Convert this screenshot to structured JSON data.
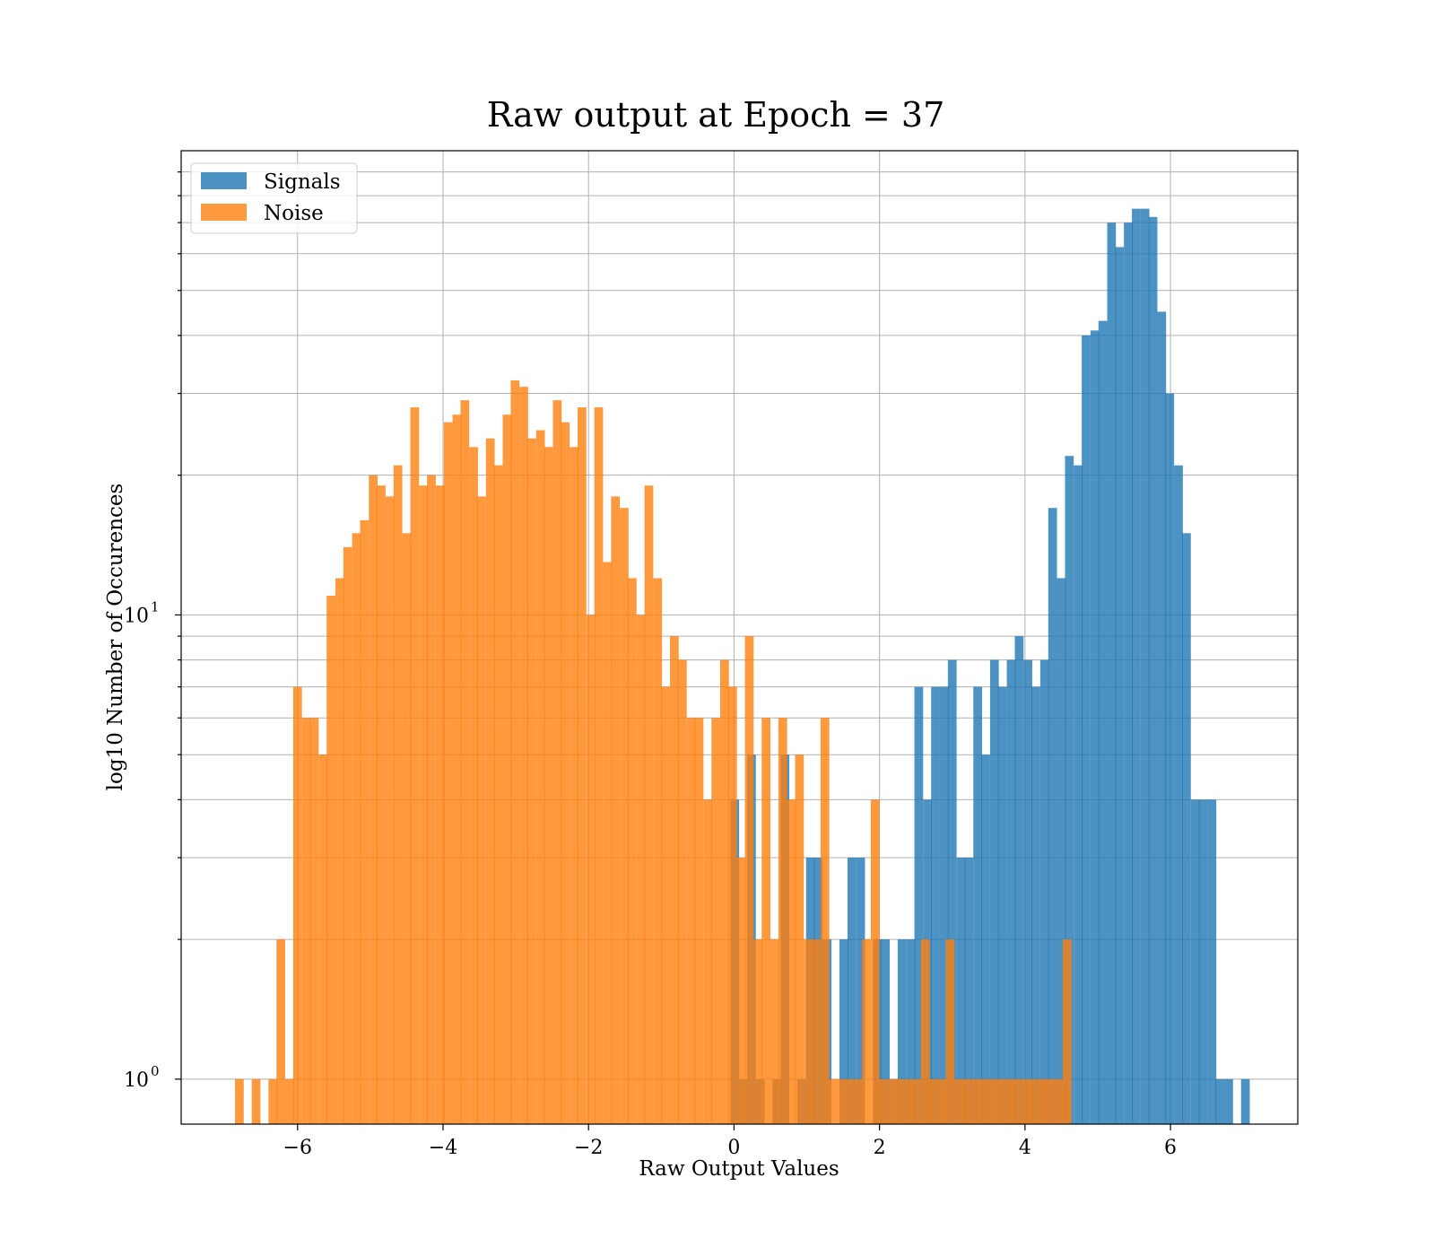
{
  "chart_data": {
    "type": "bar",
    "title": "Raw output at Epoch = 37",
    "xlabel": "Raw Output Values",
    "ylabel": "log10 Number of Occurences",
    "xlim": [
      -7.6,
      7.75
    ],
    "ylim": [
      0.8,
      100
    ],
    "yscale": "log",
    "grid": true,
    "legend_position": "top-left",
    "xticks": [
      -6,
      -4,
      -2,
      0,
      2,
      4,
      6
    ],
    "xtick_labels": [
      "−6",
      "−4",
      "−2",
      "0",
      "2",
      "4",
      "6"
    ],
    "yticks": [
      {
        "value": 1,
        "base": "10",
        "exp": "0"
      },
      {
        "value": 10,
        "base": "10",
        "exp": "1"
      }
    ],
    "series": [
      {
        "name": "Signals",
        "color": "#1f77b4",
        "opacity": 0.8,
        "bin_width": 0.115,
        "bins": [
          [
            -0.05,
            4
          ],
          [
            0.07,
            1
          ],
          [
            0.18,
            5
          ],
          [
            0.3,
            1
          ],
          [
            0.53,
            1
          ],
          [
            0.64,
            5
          ],
          [
            0.87,
            1
          ],
          [
            0.99,
            3
          ],
          [
            1.1,
            3
          ],
          [
            1.22,
            2
          ],
          [
            1.45,
            2
          ],
          [
            1.56,
            3
          ],
          [
            1.68,
            3
          ],
          [
            1.91,
            2
          ],
          [
            2.02,
            2
          ],
          [
            2.14,
            1
          ],
          [
            2.25,
            2
          ],
          [
            2.37,
            2
          ],
          [
            2.48,
            7
          ],
          [
            2.6,
            4
          ],
          [
            2.71,
            7
          ],
          [
            2.83,
            7
          ],
          [
            2.94,
            8
          ],
          [
            3.06,
            3
          ],
          [
            3.17,
            3
          ],
          [
            3.29,
            7
          ],
          [
            3.4,
            5
          ],
          [
            3.52,
            8
          ],
          [
            3.63,
            7
          ],
          [
            3.75,
            8
          ],
          [
            3.86,
            9
          ],
          [
            3.98,
            8
          ],
          [
            4.09,
            7
          ],
          [
            4.21,
            8
          ],
          [
            4.32,
            17
          ],
          [
            4.44,
            12
          ],
          [
            4.55,
            22
          ],
          [
            4.67,
            21
          ],
          [
            4.78,
            40
          ],
          [
            4.9,
            41
          ],
          [
            5.01,
            43
          ],
          [
            5.13,
            70
          ],
          [
            5.24,
            62
          ],
          [
            5.36,
            70
          ],
          [
            5.47,
            75
          ],
          [
            5.59,
            75
          ],
          [
            5.7,
            72
          ],
          [
            5.82,
            45
          ],
          [
            5.93,
            30
          ],
          [
            6.05,
            21
          ],
          [
            6.16,
            15
          ],
          [
            6.28,
            4
          ],
          [
            6.39,
            4
          ],
          [
            6.51,
            4
          ],
          [
            6.62,
            1
          ],
          [
            6.74,
            1
          ],
          [
            6.97,
            1
          ]
        ]
      },
      {
        "name": "Noise",
        "color": "#ff7f0e",
        "opacity": 0.8,
        "bin_width": 0.115,
        "bins": [
          [
            -6.86,
            1
          ],
          [
            -6.63,
            1
          ],
          [
            -6.4,
            1
          ],
          [
            -6.29,
            2
          ],
          [
            -6.17,
            1
          ],
          [
            -6.06,
            7
          ],
          [
            -5.94,
            6
          ],
          [
            -5.83,
            6
          ],
          [
            -5.71,
            5
          ],
          [
            -5.6,
            11
          ],
          [
            -5.48,
            12
          ],
          [
            -5.37,
            14
          ],
          [
            -5.25,
            15
          ],
          [
            -5.14,
            16
          ],
          [
            -5.02,
            20
          ],
          [
            -4.91,
            19
          ],
          [
            -4.79,
            18
          ],
          [
            -4.68,
            21
          ],
          [
            -4.56,
            15
          ],
          [
            -4.45,
            28
          ],
          [
            -4.33,
            19
          ],
          [
            -4.22,
            20
          ],
          [
            -4.1,
            19
          ],
          [
            -3.99,
            26
          ],
          [
            -3.87,
            27
          ],
          [
            -3.76,
            29
          ],
          [
            -3.64,
            23
          ],
          [
            -3.53,
            18
          ],
          [
            -3.41,
            24
          ],
          [
            -3.3,
            21
          ],
          [
            -3.18,
            27
          ],
          [
            -3.07,
            32
          ],
          [
            -2.95,
            31
          ],
          [
            -2.84,
            24
          ],
          [
            -2.72,
            25
          ],
          [
            -2.61,
            23
          ],
          [
            -2.49,
            29
          ],
          [
            -2.38,
            26
          ],
          [
            -2.26,
            23
          ],
          [
            -2.15,
            28
          ],
          [
            -2.03,
            10
          ],
          [
            -1.92,
            28
          ],
          [
            -1.8,
            13
          ],
          [
            -1.69,
            18
          ],
          [
            -1.57,
            17
          ],
          [
            -1.46,
            12
          ],
          [
            -1.34,
            10
          ],
          [
            -1.23,
            19
          ],
          [
            -1.11,
            12
          ],
          [
            -1.0,
            7
          ],
          [
            -0.88,
            9
          ],
          [
            -0.77,
            8
          ],
          [
            -0.65,
            6
          ],
          [
            -0.54,
            6
          ],
          [
            -0.42,
            4
          ],
          [
            -0.31,
            6
          ],
          [
            -0.19,
            8
          ],
          [
            -0.08,
            7
          ],
          [
            0.04,
            3
          ],
          [
            0.15,
            9
          ],
          [
            0.27,
            2
          ],
          [
            0.38,
            6
          ],
          [
            0.5,
            2
          ],
          [
            0.61,
            6
          ],
          [
            0.73,
            4
          ],
          [
            0.84,
            5
          ],
          [
            0.96,
            2
          ],
          [
            1.07,
            2
          ],
          [
            1.19,
            6
          ],
          [
            1.3,
            1
          ],
          [
            1.42,
            1
          ],
          [
            1.53,
            1
          ],
          [
            1.65,
            1
          ],
          [
            1.76,
            2
          ],
          [
            1.88,
            4
          ],
          [
            1.99,
            1
          ],
          [
            2.11,
            1
          ],
          [
            2.22,
            1
          ],
          [
            2.34,
            1
          ],
          [
            2.45,
            1
          ],
          [
            2.57,
            2
          ],
          [
            2.68,
            1
          ],
          [
            2.8,
            1
          ],
          [
            2.91,
            2
          ],
          [
            3.03,
            1
          ],
          [
            3.14,
            1
          ],
          [
            3.26,
            1
          ],
          [
            3.37,
            1
          ],
          [
            3.49,
            1
          ],
          [
            3.6,
            1
          ],
          [
            3.72,
            1
          ],
          [
            3.83,
            1
          ],
          [
            3.95,
            1
          ],
          [
            4.06,
            1
          ],
          [
            4.18,
            1
          ],
          [
            4.29,
            1
          ],
          [
            4.41,
            1
          ],
          [
            4.52,
            2
          ]
        ]
      }
    ]
  }
}
